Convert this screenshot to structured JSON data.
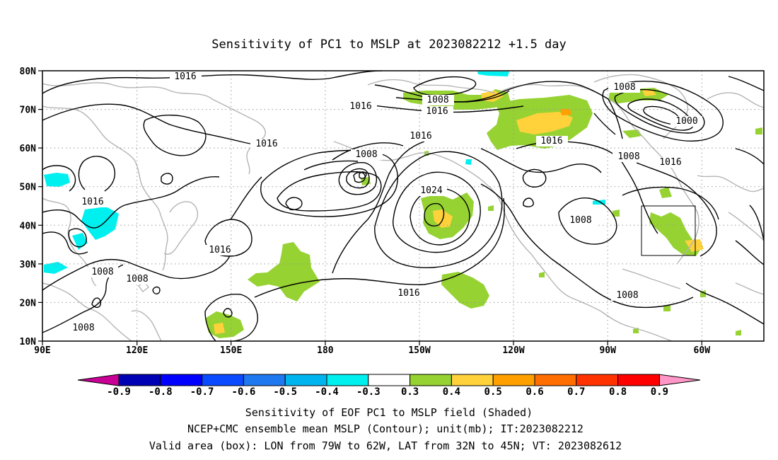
{
  "title": "Sensitivity of PC1 to MSLP at 2023082212 +1.5 day",
  "lat_labels": [
    "80N",
    "70N",
    "60N",
    "50N",
    "40N",
    "30N",
    "20N",
    "10N"
  ],
  "lon_labels": [
    "90E",
    "120E",
    "150E",
    "180",
    "150W",
    "120W",
    "90W",
    "60W"
  ],
  "contour_labels": [
    {
      "text": "1016"
    },
    {
      "text": "1016"
    },
    {
      "text": "1016"
    },
    {
      "text": "1016"
    },
    {
      "text": "1016"
    },
    {
      "text": "1016"
    },
    {
      "text": "1016"
    },
    {
      "text": "1016"
    },
    {
      "text": "1008"
    },
    {
      "text": "1008"
    },
    {
      "text": "1008"
    },
    {
      "text": "1008"
    },
    {
      "text": "1008"
    },
    {
      "text": "1008"
    },
    {
      "text": "1008"
    },
    {
      "text": "1008"
    },
    {
      "text": "1008"
    },
    {
      "text": "1016"
    },
    {
      "text": "1024"
    },
    {
      "text": "1000"
    },
    {
      "text": "1016"
    }
  ],
  "colorbar": {
    "labels": [
      "-0.9",
      "-0.8",
      "-0.7",
      "-0.6",
      "-0.5",
      "-0.4",
      "-0.3",
      "0.3",
      "0.4",
      "0.5",
      "0.6",
      "0.7",
      "0.8",
      "0.9"
    ],
    "colors": [
      "#0000b4",
      "#0000ff",
      "#0a4bff",
      "#1e78f0",
      "#00b4f0",
      "#00f0f0",
      "#ffffff",
      "#96d232",
      "#ffd23c",
      "#ffa000",
      "#ff6e00",
      "#ff3200",
      "#ff0000"
    ],
    "left_arrow_color": "#c80096",
    "right_arrow_color": "#ff96c8"
  },
  "caption": [
    "Sensitivity of EOF PC1 to MSLP field (Shaded)",
    "NCEP+CMC ensemble mean MSLP (Contour); unit(mb); IT:2023082212",
    "Valid area (box): LON from 79W to 62W, LAT from 32N to 45N; VT: 2023082612"
  ]
}
